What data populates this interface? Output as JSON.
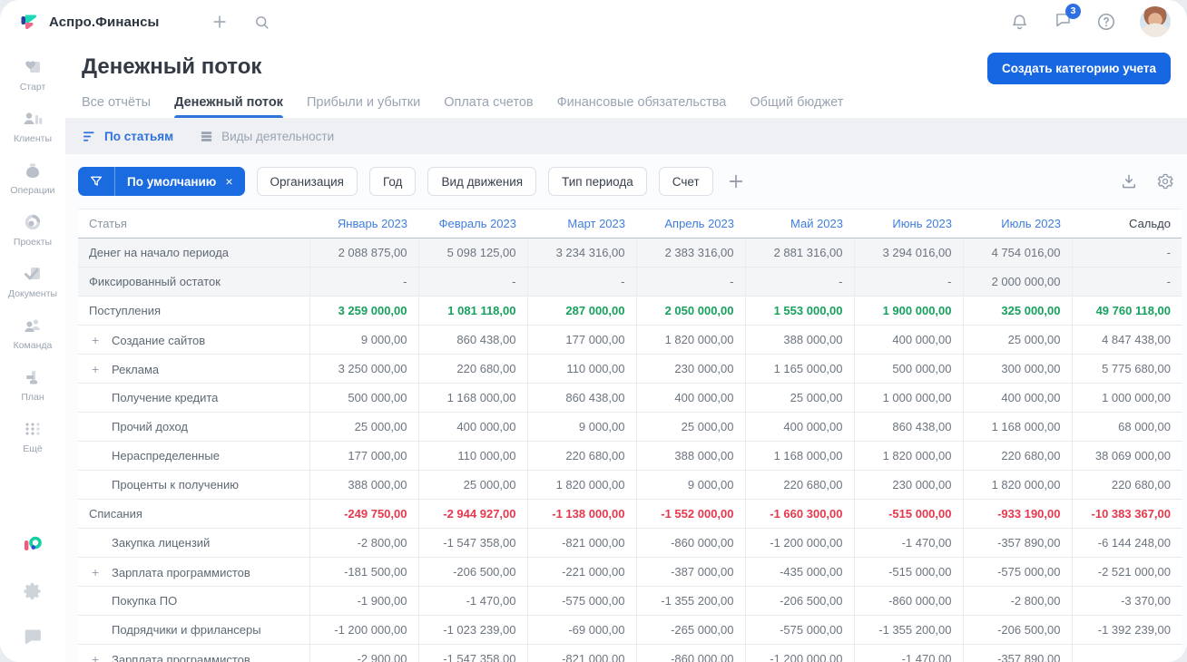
{
  "app": {
    "brand": "Аспро.Финансы",
    "chat_badge": "3"
  },
  "colors": {
    "accent_blue": "#1a6ae0",
    "link_blue": "#3f7edb",
    "income_green": "#17a05e",
    "expense_red": "#e5394d"
  },
  "sidebar": {
    "items": [
      {
        "label": "Старт",
        "icon": "start-icon"
      },
      {
        "label": "Клиенты",
        "icon": "clients-icon"
      },
      {
        "label": "Операции",
        "icon": "operations-icon"
      },
      {
        "label": "Проекты",
        "icon": "projects-icon"
      },
      {
        "label": "Документы",
        "icon": "documents-icon"
      },
      {
        "label": "Команда",
        "icon": "team-icon"
      },
      {
        "label": "План",
        "icon": "plan-icon"
      },
      {
        "label": "Ещё",
        "icon": "more-icon"
      }
    ],
    "footer_icons": [
      "brand-mini-logo",
      "settings-gear-icon",
      "chat-bubble-icon"
    ]
  },
  "header": {
    "title": "Денежный поток",
    "create_button": "Создать категорию учета"
  },
  "tabs": [
    {
      "label": "Все отчёты",
      "active": false
    },
    {
      "label": "Денежный поток",
      "active": true
    },
    {
      "label": "Прибыли и убытки",
      "active": false
    },
    {
      "label": "Оплата счетов",
      "active": false
    },
    {
      "label": "Финансовые обязательства",
      "active": false
    },
    {
      "label": "Общий бюджет",
      "active": false
    }
  ],
  "subtabs": [
    {
      "label": "По статьям",
      "icon": "sort-lines-icon",
      "active": true
    },
    {
      "label": "Виды деятельности",
      "icon": "stacked-rows-icon",
      "active": false
    }
  ],
  "filters": {
    "active_label": "По умолчанию",
    "remove_symbol": "×",
    "buttons": [
      "Организация",
      "Год",
      "Вид движения",
      "Тип периода",
      "Счет"
    ]
  },
  "table": {
    "columns": [
      "Статья",
      "Январь 2023",
      "Февраль 2023",
      "Март 2023",
      "Апрель 2023",
      "Май 2023",
      "Июнь 2023",
      "Июль 2023",
      "Сальдо"
    ],
    "rows": [
      {
        "label": "Денег на начало периода",
        "style": "muted",
        "plus": false,
        "indent": 0,
        "values": [
          "2 088 875,00",
          "5 098 125,00",
          "3 234 316,00",
          "2 383 316,00",
          "2 881 316,00",
          "3 294 016,00",
          "4 754 016,00",
          "-"
        ]
      },
      {
        "label": "Фиксированный остаток",
        "style": "muted",
        "plus": false,
        "indent": 0,
        "values": [
          "-",
          "-",
          "-",
          "-",
          "-",
          "-",
          "2 000 000,00",
          "-"
        ]
      },
      {
        "label": "Поступления",
        "style": "income",
        "plus": false,
        "indent": 0,
        "values": [
          "3 259 000,00",
          "1 081 118,00",
          "287 000,00",
          "2 050 000,00",
          "1 553 000,00",
          "1 900 000,00",
          "325 000,00",
          "49 760 118,00"
        ]
      },
      {
        "label": "Создание сайтов",
        "style": "normal",
        "plus": true,
        "indent": 1,
        "values": [
          "9 000,00",
          "860 438,00",
          "177 000,00",
          "1 820 000,00",
          "388 000,00",
          "400 000,00",
          "25 000,00",
          "4 847 438,00"
        ]
      },
      {
        "label": "Реклама",
        "style": "normal",
        "plus": true,
        "indent": 1,
        "values": [
          "3 250 000,00",
          "220 680,00",
          "110 000,00",
          "230 000,00",
          "1 165 000,00",
          "500 000,00",
          "300 000,00",
          "5 775 680,00"
        ]
      },
      {
        "label": "Получение кредита",
        "style": "normal",
        "plus": false,
        "indent": 1,
        "values": [
          "500 000,00",
          "1 168 000,00",
          "860 438,00",
          "400 000,00",
          "25 000,00",
          "1 000 000,00",
          "400 000,00",
          "1 000 000,00"
        ]
      },
      {
        "label": "Прочий доход",
        "style": "normal",
        "plus": false,
        "indent": 1,
        "values": [
          "25 000,00",
          "400 000,00",
          "9 000,00",
          "25 000,00",
          "400 000,00",
          "860 438,00",
          "1 168 000,00",
          "68 000,00"
        ]
      },
      {
        "label": "Нераспределенные",
        "style": "normal",
        "plus": false,
        "indent": 1,
        "values": [
          "177 000,00",
          "110 000,00",
          "220 680,00",
          "388 000,00",
          "1 168 000,00",
          "1 820 000,00",
          "220 680,00",
          "38 069 000,00"
        ]
      },
      {
        "label": "Проценты к получению",
        "style": "normal",
        "plus": false,
        "indent": 1,
        "values": [
          "388 000,00",
          "25 000,00",
          "1 820 000,00",
          "9 000,00",
          "220 680,00",
          "230 000,00",
          "1 820 000,00",
          "220 680,00"
        ]
      },
      {
        "label": "Списания",
        "style": "expense",
        "plus": false,
        "indent": 0,
        "values": [
          "-249 750,00",
          "-2 944 927,00",
          "-1 138 000,00",
          "-1 552 000,00",
          "-1 660 300,00",
          "-515 000,00",
          "-933 190,00",
          "-10 383 367,00"
        ]
      },
      {
        "label": "Закупка лицензий",
        "style": "normal",
        "plus": false,
        "indent": 1,
        "values": [
          "-2 800,00",
          "-1 547 358,00",
          "-821 000,00",
          "-860 000,00",
          "-1 200 000,00",
          "-1 470,00",
          "-357 890,00",
          "-6 144 248,00"
        ]
      },
      {
        "label": "Зарплата программистов",
        "style": "normal",
        "plus": true,
        "indent": 1,
        "values": [
          "-181 500,00",
          "-206 500,00",
          "-221 000,00",
          "-387 000,00",
          "-435 000,00",
          "-515 000,00",
          "-575 000,00",
          "-2 521 000,00"
        ]
      },
      {
        "label": "Покупка ПО",
        "style": "normal",
        "plus": false,
        "indent": 1,
        "values": [
          "-1 900,00",
          "-1 470,00",
          "-575 000,00",
          "-1 355 200,00",
          "-206 500,00",
          "-860 000,00",
          "-2 800,00",
          "-3 370,00"
        ]
      },
      {
        "label": "Подрядчики и фрилансеры",
        "style": "normal",
        "plus": false,
        "indent": 1,
        "values": [
          "-1 200 000,00",
          "-1 023 239,00",
          "-69 000,00",
          "-265 000,00",
          "-575 000,00",
          "-1 355 200,00",
          "-206 500,00",
          "-1 392 239,00"
        ]
      },
      {
        "label": "Зарплата программистов",
        "style": "normal",
        "plus": true,
        "indent": 1,
        "values": [
          "-2 900,00",
          "-1 547 358,00",
          "-821 000,00",
          "-860 000,00",
          "-1 200 000,00",
          "-1 470,00",
          "-357 890,00",
          ""
        ]
      }
    ]
  }
}
